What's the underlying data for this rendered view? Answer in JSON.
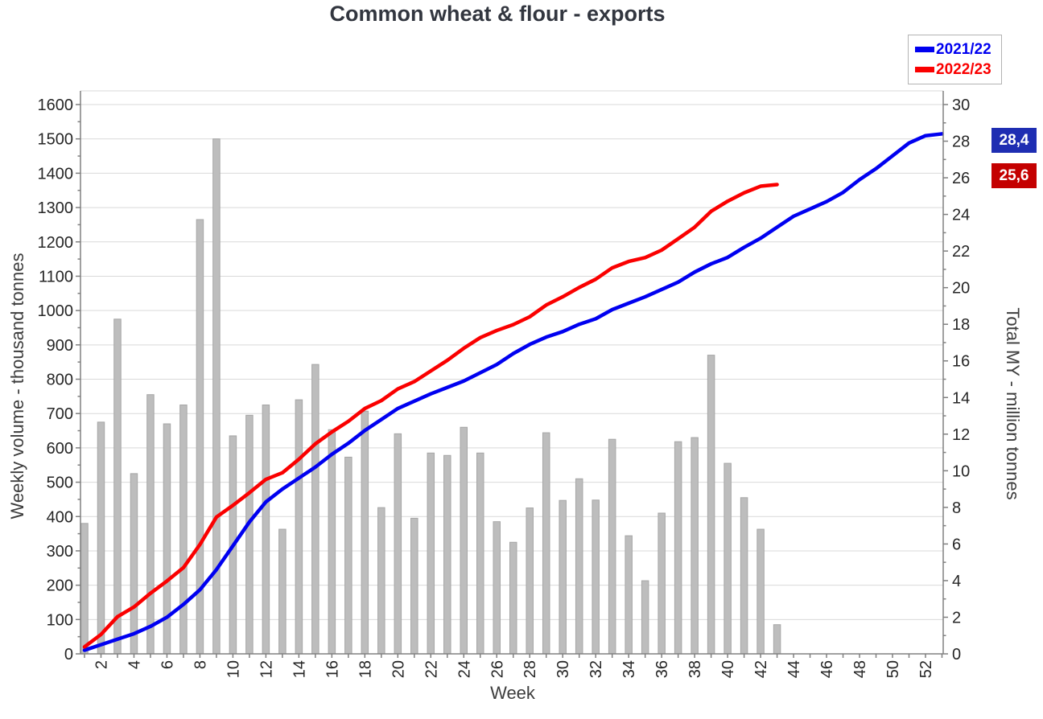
{
  "title": "Common wheat & flour - exports",
  "legend": [
    {
      "label": "2021/22",
      "color": "#0000f0"
    },
    {
      "label": "2022/23",
      "color": "#fa0000"
    }
  ],
  "end_labels": [
    {
      "text": "28,4",
      "bg": "#1e2db2",
      "series": "2021/22"
    },
    {
      "text": "25,6",
      "bg": "#c40000",
      "series": "2022/23"
    }
  ],
  "chart_data": {
    "type": "combo",
    "title": "Common wheat & flour - exports",
    "grid": true,
    "legend_position": "top-right",
    "x_axis": {
      "label": "Week",
      "range": [
        0.5,
        53.2
      ],
      "tick_step": 2,
      "ticks": [
        2,
        4,
        6,
        8,
        10,
        12,
        14,
        16,
        18,
        20,
        22,
        24,
        26,
        28,
        30,
        32,
        34,
        36,
        38,
        40,
        42,
        44,
        46,
        48,
        50,
        52
      ]
    },
    "left_axis": {
      "label": "Weekly volume - thousand tonnes",
      "range": [
        0,
        1600
      ],
      "tick_step": 100,
      "ticks": [
        0,
        100,
        200,
        300,
        400,
        500,
        600,
        700,
        800,
        900,
        1000,
        1100,
        1200,
        1300,
        1400,
        1500,
        1600
      ]
    },
    "right_axis": {
      "label": "Total MY - million tonnes",
      "range": [
        0,
        30
      ],
      "tick_step": 2,
      "ticks": [
        0,
        2,
        4,
        6,
        8,
        10,
        12,
        14,
        16,
        18,
        20,
        22,
        24,
        26,
        28,
        30
      ]
    },
    "bars": {
      "name": "2022/23 weekly volume",
      "axis": "left",
      "color": "#bdbdbd",
      "border_color": "#a6a6a6",
      "start_week": 1,
      "values": [
        380,
        675,
        975,
        525,
        755,
        670,
        725,
        1265,
        1500,
        635,
        695,
        725,
        363,
        740,
        843,
        653,
        573,
        707,
        426,
        641,
        395,
        585,
        578,
        660,
        585,
        385,
        325,
        425,
        644,
        447,
        510,
        448,
        625,
        344,
        213,
        410,
        618,
        630,
        870,
        555,
        455,
        363,
        85
      ]
    },
    "series": [
      {
        "name": "2021/22",
        "type": "line",
        "axis": "right",
        "color": "#0000f0",
        "start_week": 1,
        "end_value_label": "28,4",
        "values": [
          0.2,
          0.5,
          0.8,
          1.1,
          1.5,
          2.0,
          2.7,
          3.5,
          4.6,
          5.9,
          7.2,
          8.3,
          9.0,
          9.6,
          10.2,
          10.9,
          11.5,
          12.2,
          12.8,
          13.4,
          13.8,
          14.2,
          14.55,
          14.9,
          15.35,
          15.8,
          16.4,
          16.9,
          17.3,
          17.6,
          18.0,
          18.3,
          18.8,
          19.15,
          19.5,
          19.9,
          20.3,
          20.85,
          21.3,
          21.65,
          22.2,
          22.7,
          23.3,
          23.9,
          24.3,
          24.7,
          25.2,
          25.9,
          26.5,
          27.2,
          27.9,
          28.3,
          28.4
        ]
      },
      {
        "name": "2022/23",
        "type": "line",
        "axis": "right",
        "color": "#fa0000",
        "start_week": 1,
        "end_value_label": "25,6",
        "values": [
          0.38,
          1.06,
          2.03,
          2.56,
          3.31,
          3.98,
          4.71,
          5.97,
          7.47,
          8.11,
          8.8,
          9.53,
          9.89,
          10.63,
          11.47,
          12.12,
          12.7,
          13.4,
          13.83,
          14.47,
          14.87,
          15.45,
          16.03,
          16.69,
          17.27,
          17.66,
          17.98,
          18.41,
          19.05,
          19.5,
          20.01,
          20.46,
          21.08,
          21.43,
          21.64,
          22.05,
          22.67,
          23.3,
          24.17,
          24.72,
          25.18,
          25.54,
          25.63
        ]
      }
    ],
    "colors": {
      "gridline": "#d9d9d9",
      "axis_line": "#808080",
      "tick_label": "#262626",
      "axis_title": "#3d3d3d",
      "title": "#32363f",
      "background": "#ffffff"
    }
  }
}
